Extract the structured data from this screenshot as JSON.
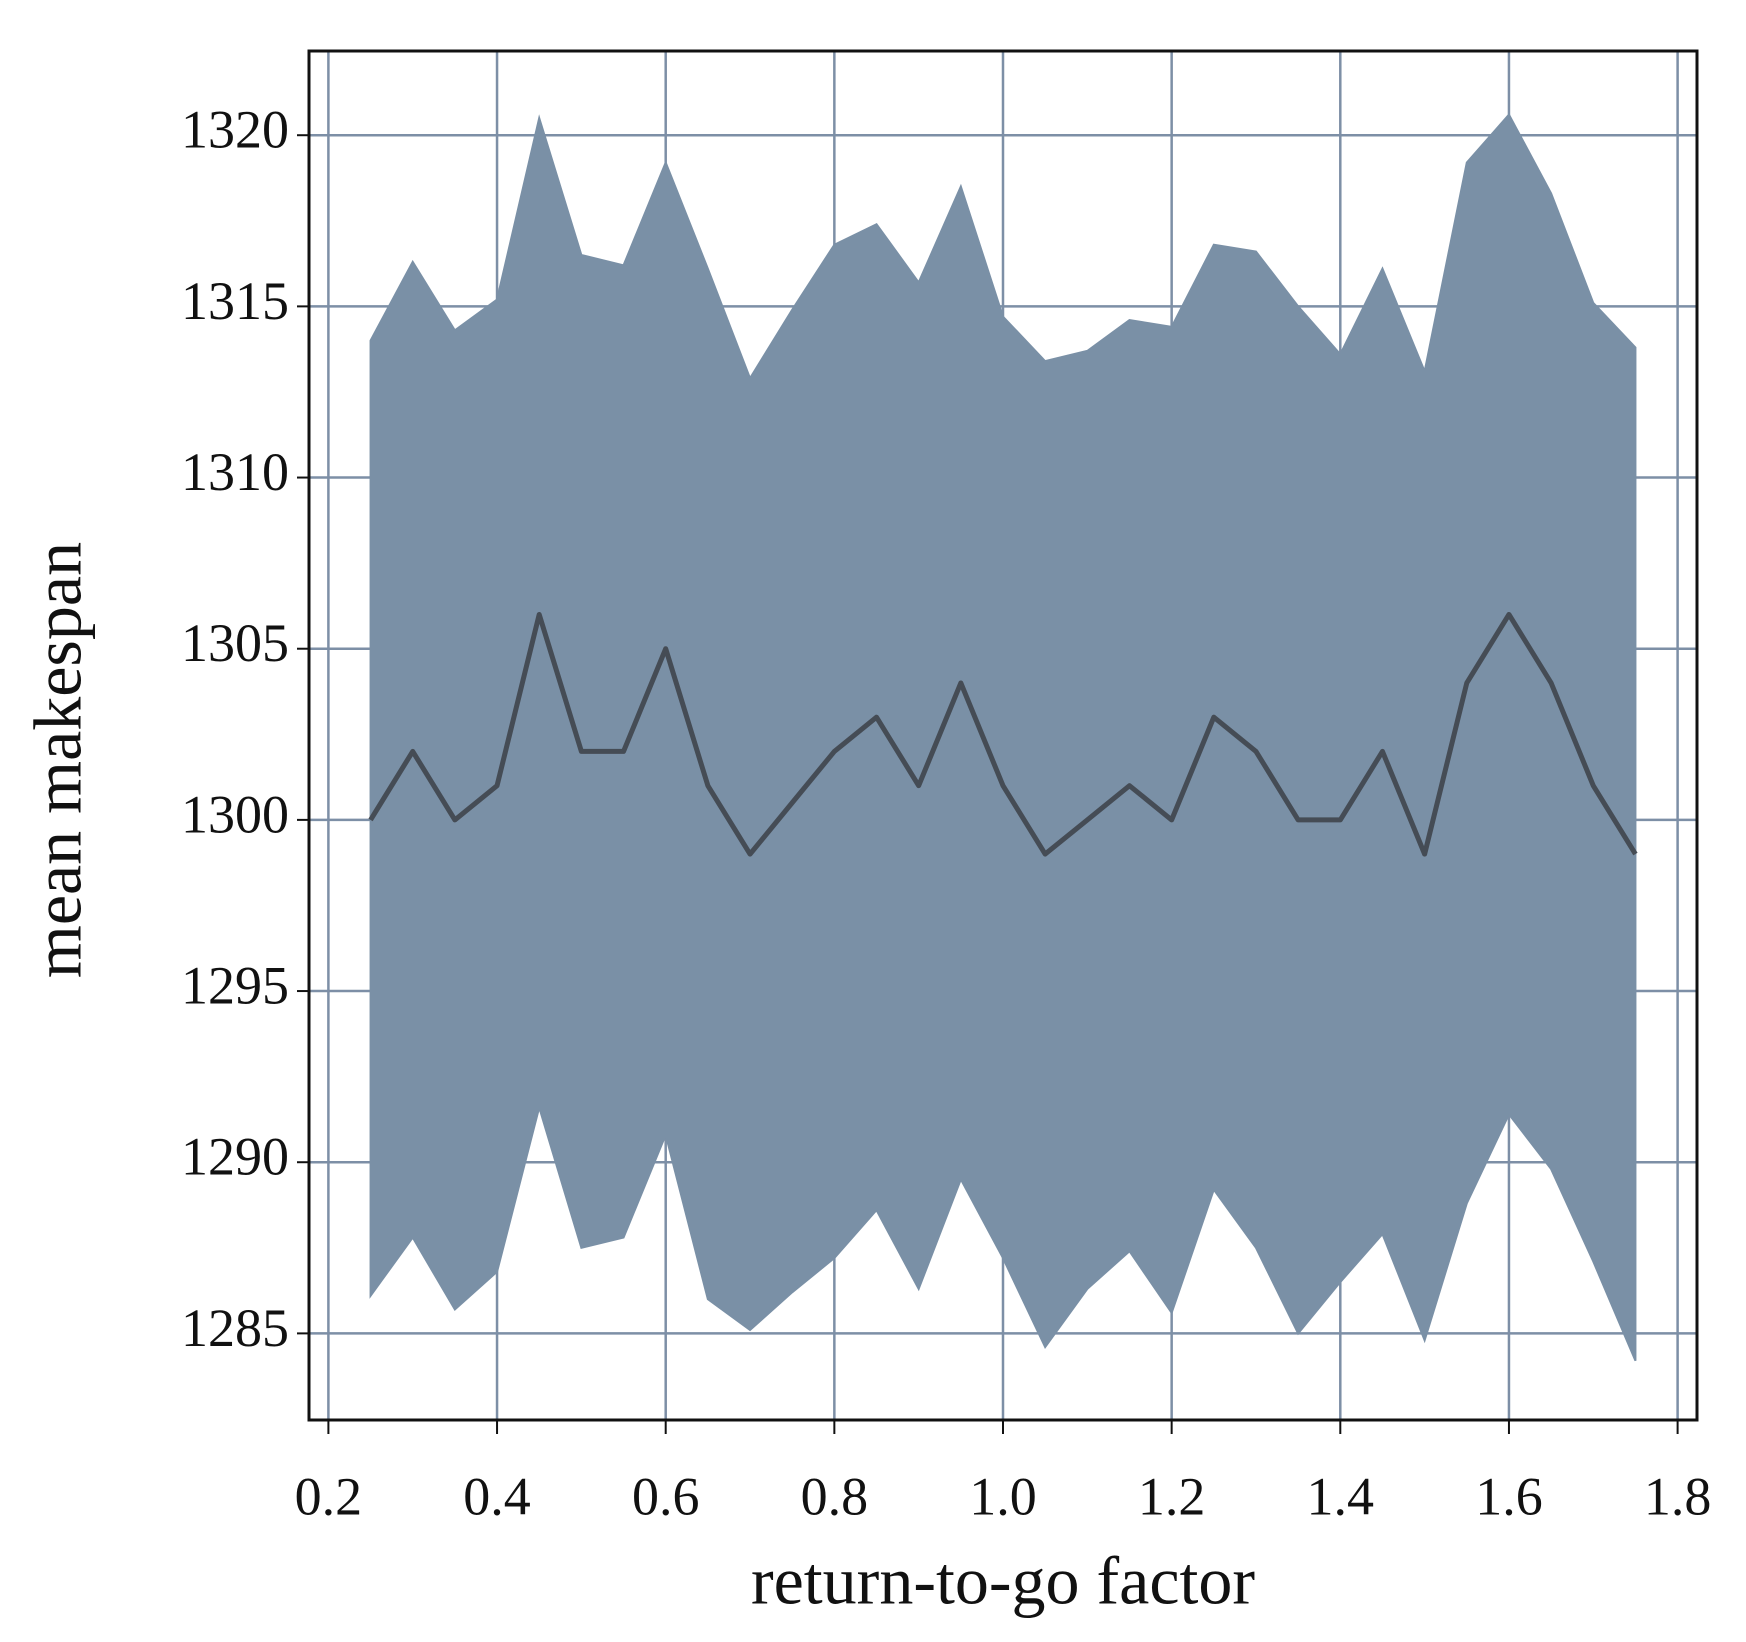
{
  "chart_data": {
    "type": "line",
    "x_label": "return-to-go factor",
    "y_label": "mean makespan",
    "x": [
      0.25,
      0.3,
      0.35,
      0.4,
      0.45,
      0.5,
      0.55,
      0.6,
      0.65,
      0.7,
      0.75,
      0.8,
      0.85,
      0.9,
      0.95,
      1.0,
      1.05,
      1.1,
      1.15,
      1.2,
      1.25,
      1.3,
      1.35,
      1.4,
      1.45,
      1.5,
      1.55,
      1.6,
      1.65,
      1.7,
      1.75
    ],
    "series": [
      {
        "color": "#454c55",
        "values": [
          1300,
          1302,
          1300,
          1301,
          1306,
          1302,
          1302,
          1305,
          1301,
          1299,
          1300.5,
          1302,
          1303,
          1301,
          1304,
          1301,
          1299,
          1300,
          1301,
          1300,
          1303,
          1302,
          1300,
          1300,
          1302,
          1299,
          1304,
          1306,
          1304,
          1301,
          1299
        ]
      }
    ],
    "band": {
      "color": "#7a90a6",
      "upper": [
        1314.0,
        1316.3,
        1314.3,
        1315.2,
        1320.5,
        1316.5,
        1316.2,
        1319.2,
        1316.1,
        1312.9,
        1314.9,
        1316.8,
        1317.4,
        1315.7,
        1318.5,
        1314.7,
        1313.4,
        1313.7,
        1314.6,
        1314.4,
        1316.8,
        1316.6,
        1315.0,
        1313.6,
        1316.1,
        1313.1,
        1319.2,
        1320.6,
        1318.3,
        1315.1,
        1313.8
      ],
      "lower": [
        1286.1,
        1287.8,
        1285.7,
        1286.8,
        1291.6,
        1287.5,
        1287.8,
        1290.8,
        1286.0,
        1285.1,
        1286.2,
        1287.2,
        1288.6,
        1286.3,
        1289.5,
        1287.2,
        1284.6,
        1286.3,
        1287.4,
        1285.6,
        1289.2,
        1287.5,
        1285.0,
        1286.5,
        1287.9,
        1284.8,
        1288.8,
        1291.4,
        1289.8,
        1287.1,
        1284.2
      ]
    },
    "xlim": [
      0.177,
      1.823
    ],
    "ylim": [
      1282.47,
      1322.46
    ],
    "xticks": [
      0.2,
      0.4,
      0.6,
      0.8,
      {
        "value": 1,
        "label": "1.0"
      },
      1.2,
      1.4,
      1.6,
      1.8
    ],
    "yticks": [
      1285,
      1290,
      1295,
      1300,
      1305,
      1310,
      1315,
      1320
    ],
    "grid": true,
    "grid_color": "#7d8fa6"
  }
}
